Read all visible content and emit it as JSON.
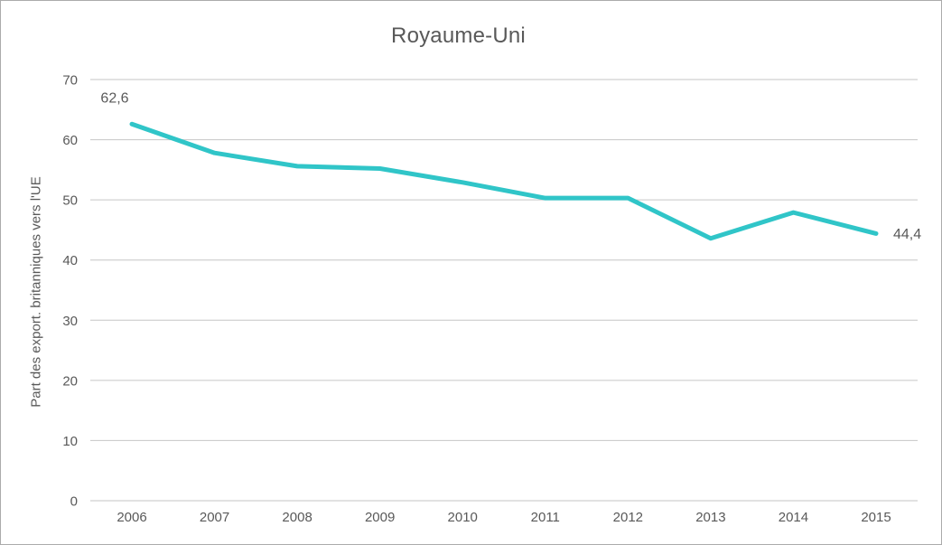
{
  "window": {
    "background_color": "#ffffff",
    "border_color": "#ababab"
  },
  "chart_data": {
    "type": "line",
    "title": "Royaume-Uni",
    "xlabel": "",
    "ylabel": "Part des export. britanniques vers l'UE",
    "categories": [
      "2006",
      "2007",
      "2008",
      "2009",
      "2010",
      "2011",
      "2012",
      "2013",
      "2014",
      "2015"
    ],
    "series": [
      {
        "name": "Part des export. britanniques vers l'UE",
        "values": [
          62.6,
          57.8,
          55.6,
          55.2,
          52.9,
          50.3,
          50.3,
          43.6,
          47.9,
          44.4
        ]
      }
    ],
    "ylim": [
      0,
      70
    ],
    "ytick_step": 10,
    "yticks": [
      0,
      10,
      20,
      30,
      40,
      50,
      60,
      70
    ],
    "grid": "horizontal",
    "legend": "none",
    "data_labels": {
      "first": "62,6",
      "last": "44,4"
    },
    "colors": {
      "line": "#30c5c8",
      "text": "#595959",
      "gridline": "#c6c6c6",
      "axis_line": "#c6c6c6"
    }
  }
}
